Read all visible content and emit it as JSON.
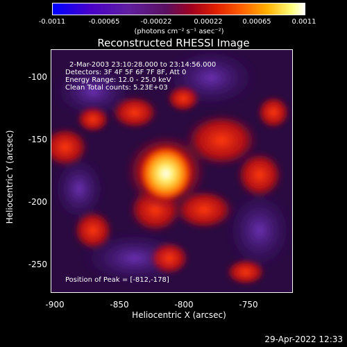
{
  "colorbar": {
    "ticks": [
      "-0.0011",
      "-0.00065",
      "-0.00022",
      "0.00022",
      "0.00065",
      "0.0011"
    ],
    "units_label": "(photons cm⁻² s⁻¹ asec⁻²)"
  },
  "title": "Reconstructed RHESSI Image",
  "annotations": {
    "time_range": "2-Mar-2003 23:10:28.000 to 23:14:56.000",
    "detectors": "Detectors: 3F 4F 5F 6F 7F 8F, Att 0",
    "energy": "Energy Range: 12.0 - 25.0 keV",
    "clean": "Clean     Total counts: 5.23E+03",
    "peak": "Position of Peak = [-812,-178]"
  },
  "axes": {
    "xlabel": "Heliocentric X (arcsec)",
    "ylabel": "Heliocentric Y (arcsec)",
    "xticks": [
      "-900",
      "-850",
      "-800",
      "-750"
    ],
    "yticks": [
      "-100",
      "-150",
      "-200",
      "-250"
    ]
  },
  "timestamp": "29-Apr-2022 12:33"
}
